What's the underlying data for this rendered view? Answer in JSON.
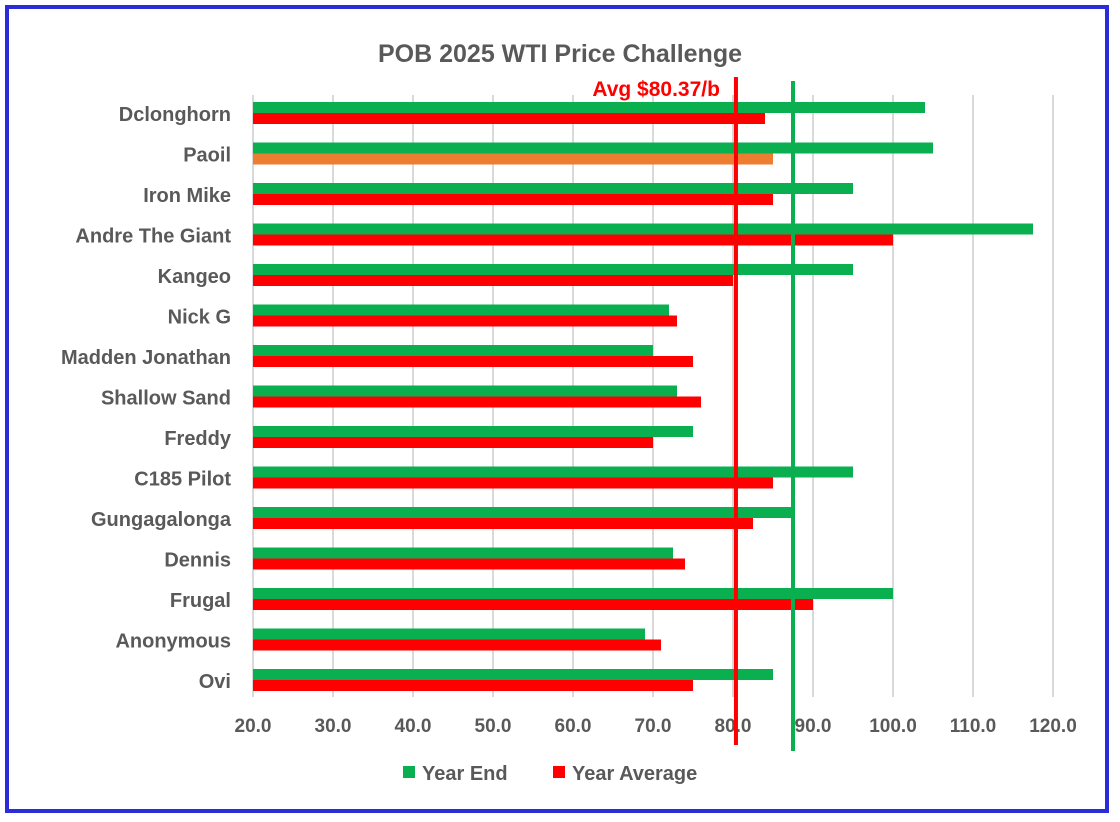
{
  "chart_data": {
    "type": "bar",
    "orientation": "horizontal",
    "title": "POB 2025 WTI Price Challenge",
    "categories": [
      "Dclonghorn",
      "Paoil",
      "Iron Mike",
      "Andre The Giant",
      "Kangeo",
      "Nick G",
      "Madden Jonathan",
      "Shallow Sand",
      "Freddy",
      "C185 Pilot",
      "Gungagalonga",
      "Dennis",
      "Frugal",
      "Anonymous",
      "Ovi"
    ],
    "series": [
      {
        "name": "Year End",
        "color": "#0aaf50",
        "values": [
          104,
          105,
          95,
          117.5,
          95,
          72,
          70,
          73,
          75,
          95,
          87.75,
          72.5,
          100,
          69,
          85
        ]
      },
      {
        "name": "Year Average",
        "color": "#ff0000",
        "values": [
          84,
          85,
          85,
          100,
          80,
          73,
          75,
          76,
          70,
          85,
          82.5,
          74,
          90,
          71,
          75
        ]
      }
    ],
    "highlight": {
      "category": "Paoil",
      "series": "Year Average",
      "color": "#ed7d31"
    },
    "xlim": [
      20,
      120
    ],
    "xticks": [
      "20.0",
      "30.0",
      "40.0",
      "50.0",
      "60.0",
      "70.0",
      "80.0",
      "90.0",
      "100.0",
      "110.0",
      "120.0"
    ],
    "grid": true,
    "legend": "bottom",
    "reference_lines": [
      {
        "value": 80.37,
        "color": "#ff0000",
        "label": "Avg $80.37/b"
      },
      {
        "value": 87.5,
        "color": "#0aaf50"
      }
    ]
  }
}
